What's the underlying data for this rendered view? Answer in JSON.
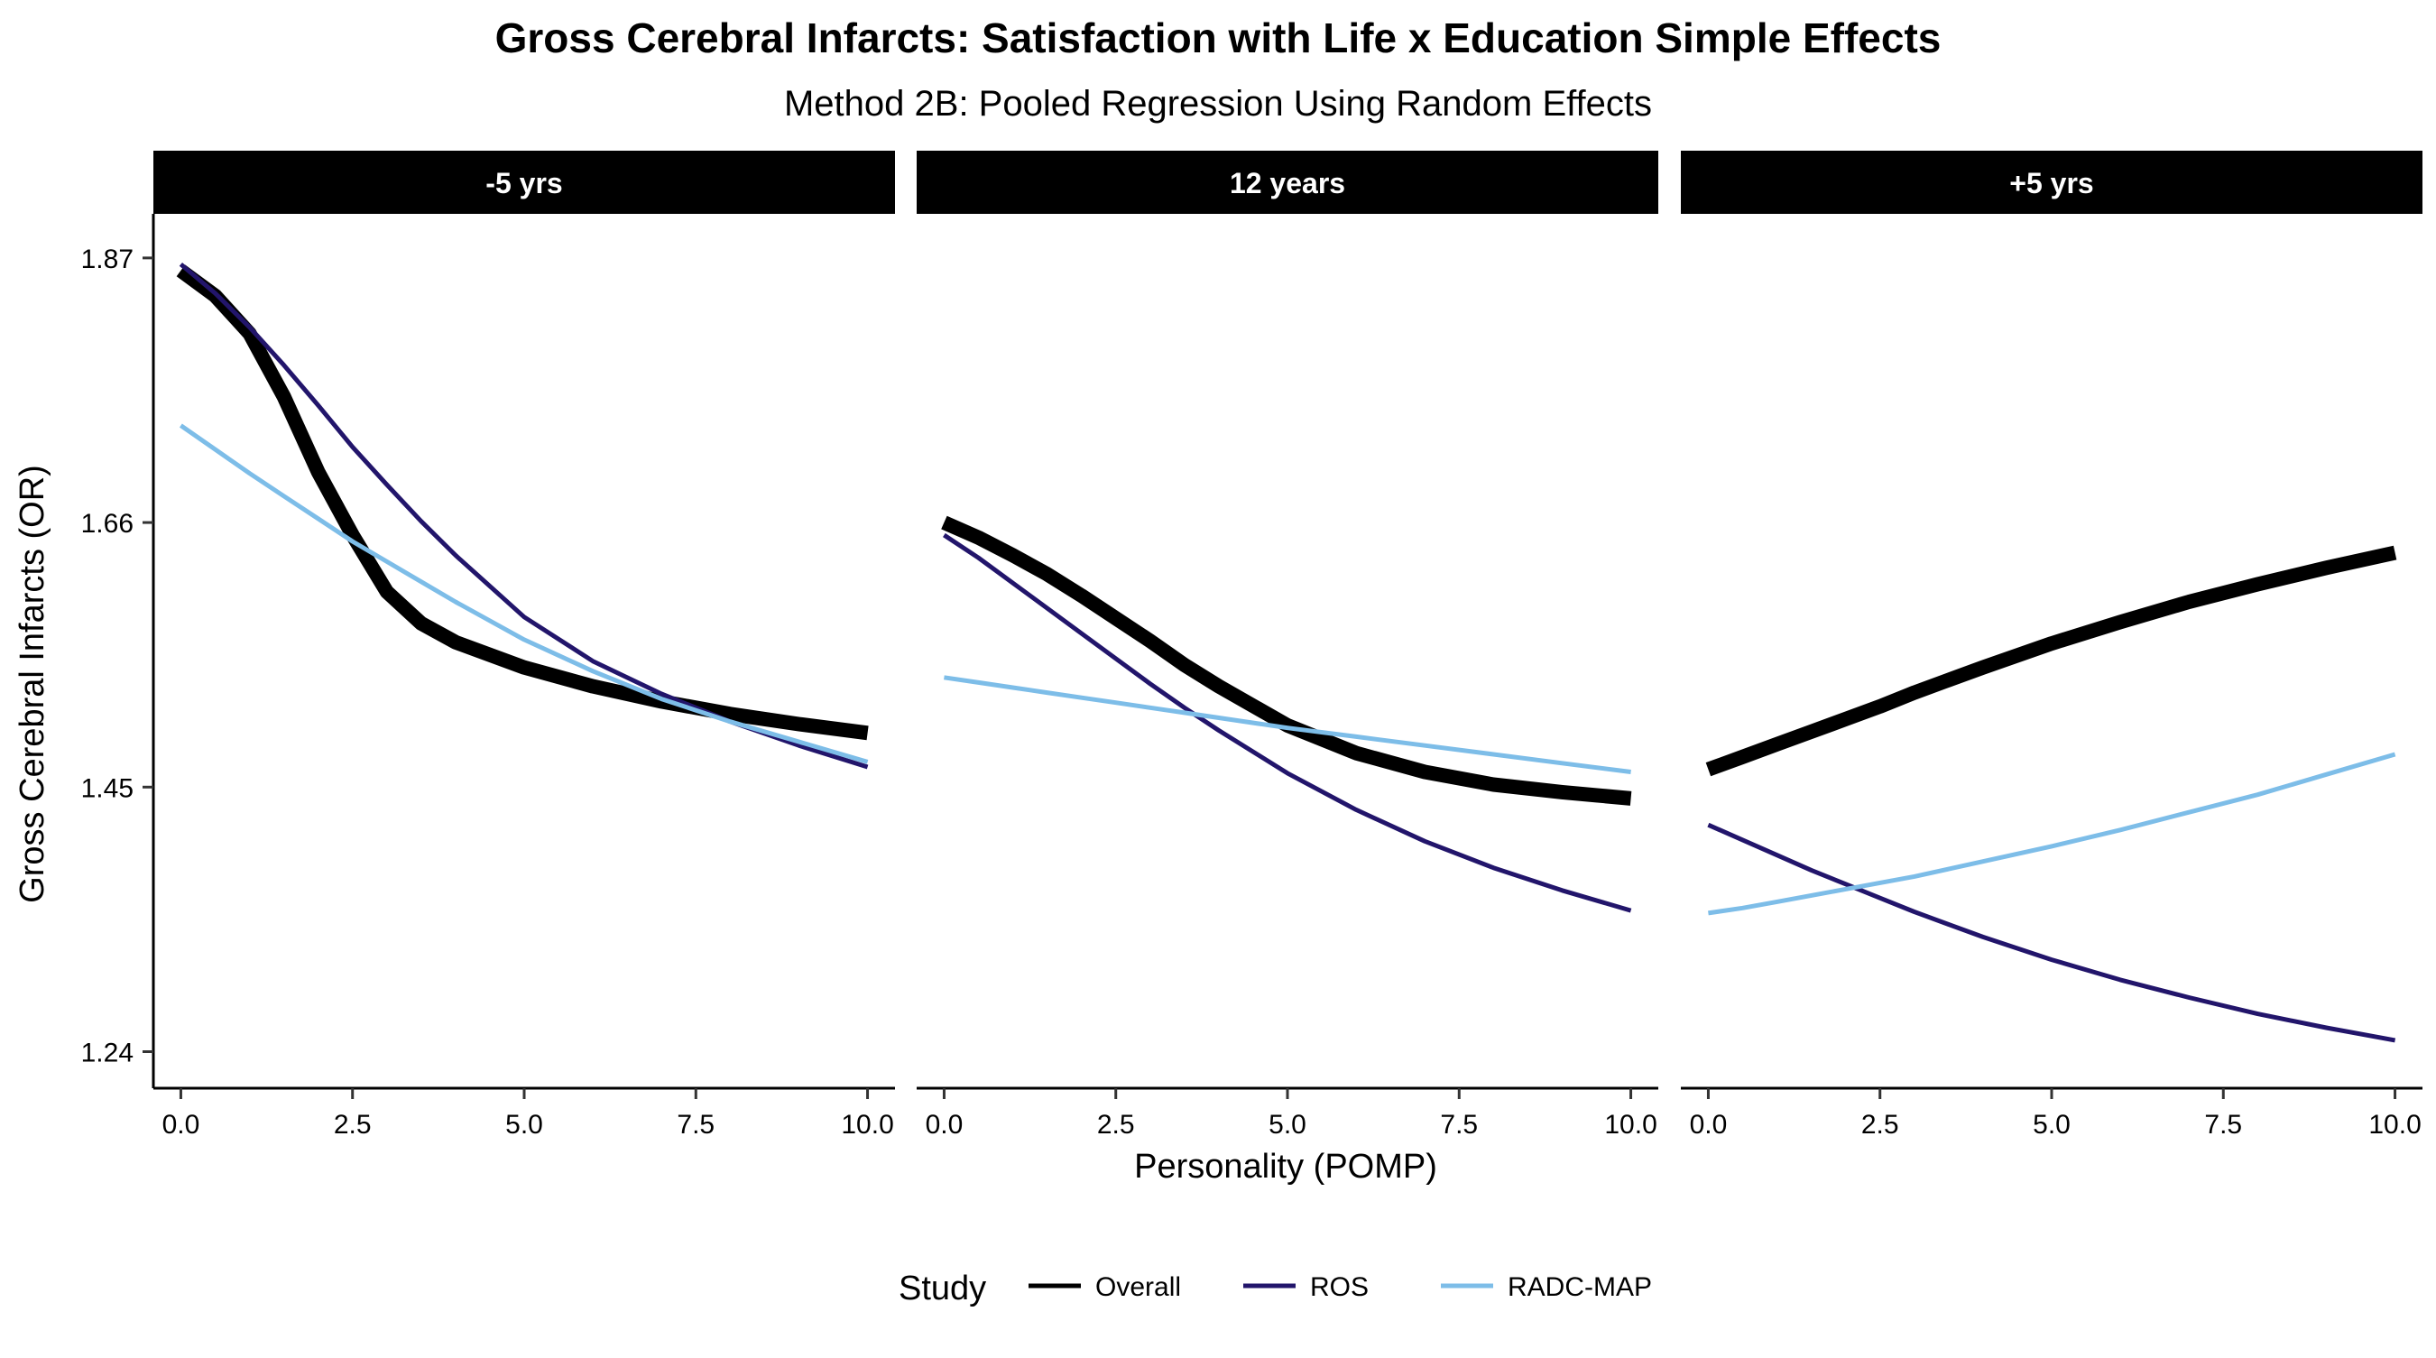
{
  "chart_data": {
    "type": "line",
    "title": "Gross Cerebral Infarcts: Satisfaction with Life x Education Simple Effects",
    "subtitle": "Method 2B: Pooled Regression Using Random Effects",
    "xlabel": "Personality (POMP)",
    "ylabel": "Gross Cerebral Infarcts (OR)",
    "xlim": [
      -0.4,
      10.4
    ],
    "ylim": [
      1.211,
      1.905
    ],
    "x_ticks": [
      0,
      2.5,
      5,
      7.5,
      10
    ],
    "x_tick_labels": [
      "0.0",
      "2.5",
      "5.0",
      "7.5",
      "10.0"
    ],
    "y_ticks": [
      1.24,
      1.45,
      1.66,
      1.87
    ],
    "y_tick_labels": [
      "1.24",
      "1.45",
      "1.66",
      "1.87"
    ],
    "grid": false,
    "legend": {
      "title": "Study",
      "position": "bottom",
      "entries": [
        {
          "name": "Overall",
          "color": "#000000"
        },
        {
          "name": "ROS",
          "color": "#22156B"
        },
        {
          "name": "RADC-MAP",
          "color": "#7DBDE8"
        }
      ]
    },
    "panels": [
      {
        "label": "-5 yrs",
        "x": [
          0,
          0.5,
          1,
          1.5,
          2,
          2.5,
          3,
          3.5,
          4,
          5,
          6,
          7,
          8,
          9,
          10
        ],
        "series": [
          {
            "name": "Overall",
            "values": [
              1.86,
              1.84,
              1.81,
              1.76,
              1.7,
              1.65,
              1.605,
              1.58,
              1.565,
              1.545,
              1.53,
              1.518,
              1.508,
              1.5,
              1.493
            ]
          },
          {
            "name": "ROS",
            "values": [
              1.865,
              1.842,
              1.815,
              1.785,
              1.753,
              1.72,
              1.69,
              1.661,
              1.634,
              1.585,
              1.55,
              1.524,
              1.502,
              1.483,
              1.466
            ]
          },
          {
            "name": "RADC-MAP",
            "values": [
              1.737,
              1.718,
              1.699,
              1.681,
              1.663,
              1.645,
              1.629,
              1.613,
              1.597,
              1.567,
              1.542,
              1.52,
              1.502,
              1.486,
              1.47
            ]
          }
        ]
      },
      {
        "label": "12 years",
        "x": [
          0,
          0.5,
          1,
          1.5,
          2,
          2.5,
          3,
          3.5,
          4,
          5,
          6,
          7,
          8,
          9,
          10
        ],
        "series": [
          {
            "name": "Overall",
            "values": [
              1.66,
              1.648,
              1.634,
              1.619,
              1.602,
              1.584,
              1.566,
              1.547,
              1.53,
              1.499,
              1.477,
              1.462,
              1.452,
              1.446,
              1.441
            ]
          },
          {
            "name": "ROS",
            "values": [
              1.65,
              1.632,
              1.612,
              1.592,
              1.572,
              1.552,
              1.532,
              1.513,
              1.495,
              1.461,
              1.432,
              1.407,
              1.386,
              1.368,
              1.352
            ]
          },
          {
            "name": "RADC-MAP",
            "values": [
              1.537,
              1.533,
              1.529,
              1.525,
              1.521,
              1.517,
              1.513,
              1.509,
              1.505,
              1.497,
              1.49,
              1.483,
              1.476,
              1.469,
              1.462
            ]
          }
        ]
      },
      {
        "label": "+5 yrs",
        "x": [
          0,
          0.5,
          1,
          1.5,
          2,
          2.5,
          3,
          3.5,
          4,
          5,
          6,
          7,
          8,
          9,
          10
        ],
        "series": [
          {
            "name": "Overall",
            "values": [
              1.464,
              1.474,
              1.484,
              1.494,
              1.504,
              1.514,
              1.525,
              1.535,
              1.545,
              1.564,
              1.581,
              1.597,
              1.611,
              1.624,
              1.636
            ]
          },
          {
            "name": "ROS",
            "values": [
              1.42,
              1.408,
              1.396,
              1.384,
              1.373,
              1.362,
              1.351,
              1.341,
              1.331,
              1.313,
              1.297,
              1.283,
              1.27,
              1.259,
              1.249
            ]
          },
          {
            "name": "RADC-MAP",
            "values": [
              1.35,
              1.354,
              1.359,
              1.364,
              1.369,
              1.374,
              1.379,
              1.385,
              1.391,
              1.403,
              1.416,
              1.43,
              1.444,
              1.46,
              1.476
            ]
          }
        ]
      }
    ]
  }
}
